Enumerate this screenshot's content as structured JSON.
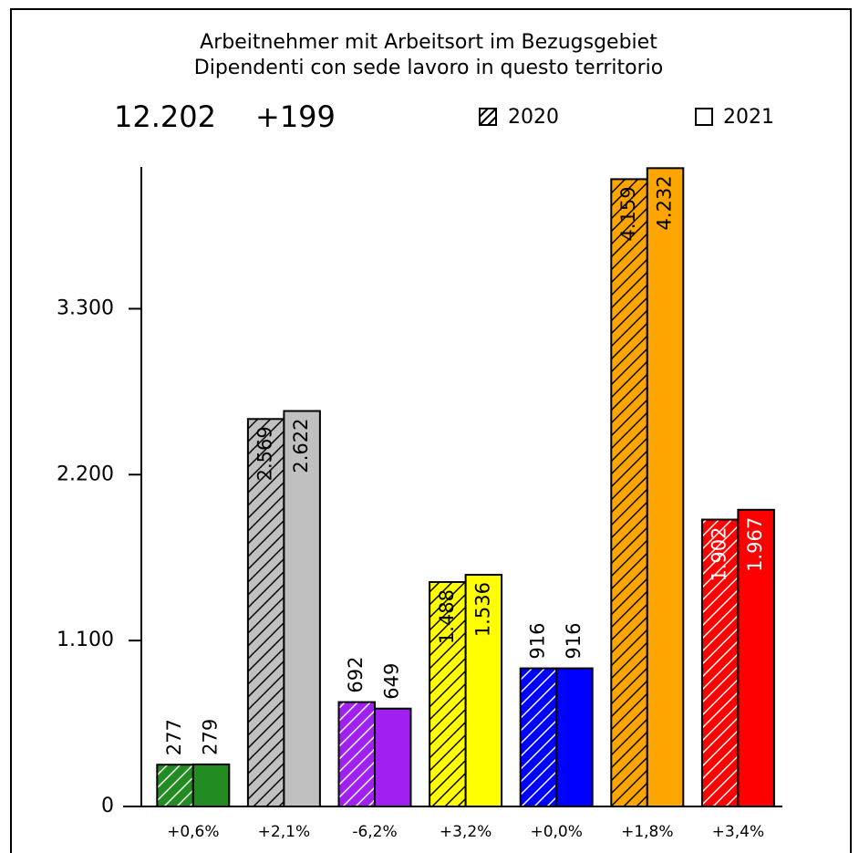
{
  "chart_data": {
    "type": "bar",
    "title": "Arbeitnehmer mit Arbeitsort im Bezugsgebiet",
    "subtitle": "Dipendenti con sede lavoro in questo territorio",
    "total": "12.202",
    "change": "+199",
    "categories": [
      "+0,6%",
      "+2,1%",
      "-6,2%",
      "+3,2%",
      "+0,0%",
      "+1,8%",
      "+3,4%"
    ],
    "colors": [
      "#228b22",
      "#c0c0c0",
      "#a020f0",
      "#ffff00",
      "#0000ff",
      "#ffa500",
      "#ff0000"
    ],
    "series": [
      {
        "name": "2020",
        "pattern": "hatched",
        "values": [
          277,
          2569,
          692,
          1488,
          916,
          4159,
          1902
        ],
        "value_labels": [
          "277",
          "2.569",
          "692",
          "1.488",
          "916",
          "4.159",
          "1.902"
        ]
      },
      {
        "name": "2021",
        "pattern": "solid",
        "values": [
          279,
          2622,
          649,
          1536,
          916,
          4232,
          1967
        ],
        "value_labels": [
          "279",
          "2.622",
          "649",
          "1.536",
          "916",
          "4.232",
          "1.967"
        ]
      }
    ],
    "ylim": [
      0,
      4240
    ],
    "yticks": [
      0,
      {
        "value": 1100,
        "label": "1.100"
      },
      {
        "value": 2200,
        "label": "2.200"
      },
      {
        "value": 3300,
        "label": "3.300"
      }
    ]
  }
}
